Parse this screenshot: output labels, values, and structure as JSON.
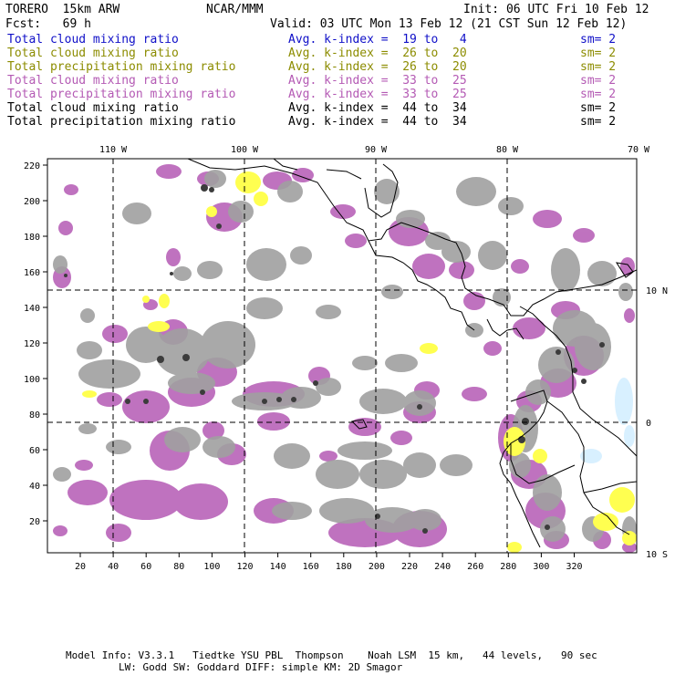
{
  "header": {
    "model": "TORERO  15km ARW",
    "org": "NCAR/MMM",
    "init": "Init: 06 UTC Fri 10 Feb 12",
    "fcst": "Fcst:   69 h",
    "valid": "Valid: 03 UTC Mon 13 Feb 12 (21 CST Sun 12 Feb 12)"
  },
  "legend": [
    {
      "field": "Total cloud mixing ratio",
      "kindex": "Avg. k-index =  19 to   4",
      "sm": "sm= 2",
      "color": "#1010c8"
    },
    {
      "field": "Total cloud mixing ratio",
      "kindex": "Avg. k-index =  26 to  20",
      "sm": "sm= 2",
      "color": "#8c8c00"
    },
    {
      "field": "Total precipitation mixing ratio",
      "kindex": "Avg. k-index =  26 to  20",
      "sm": "sm= 2",
      "color": "#8c8c00"
    },
    {
      "field": "Total cloud mixing ratio",
      "kindex": "Avg. k-index =  33 to  25",
      "sm": "sm= 2",
      "color": "#b45ab4"
    },
    {
      "field": "Total precipitation mixing ratio",
      "kindex": "Avg. k-index =  33 to  25",
      "sm": "sm= 2",
      "color": "#b45ab4"
    },
    {
      "field": "Total cloud mixing ratio",
      "kindex": "Avg. k-index =  44 to  34",
      "sm": "sm= 2",
      "color": "#000000"
    },
    {
      "field": "Total precipitation mixing ratio",
      "kindex": "Avg. k-index =  44 to  34",
      "sm": "sm= 2",
      "color": "#000000"
    }
  ],
  "map": {
    "lon_labels": [
      "110 W",
      "100 W",
      "90 W",
      "80 W",
      "70 W"
    ],
    "lat_labels": [
      "10 N",
      "0",
      "10 S"
    ],
    "x_ticks": [
      "20",
      "40",
      "60",
      "80",
      "100",
      "120",
      "140",
      "160",
      "180",
      "200",
      "220",
      "240",
      "260",
      "280",
      "300",
      "320"
    ],
    "y_ticks": [
      "220",
      "200",
      "180",
      "160",
      "140",
      "120",
      "100",
      "80",
      "60",
      "40",
      "20"
    ],
    "colors": {
      "gray": "#a0a0a0",
      "dark": "#3c3c3c",
      "purple": "#b45ab4",
      "yellow": "#ffff50",
      "cyan": "#d8f0ff"
    }
  },
  "footer": {
    "line1": "Model Info: V3.3.1   Tiedtke YSU PBL  Thompson    Noah LSM  15 km,   44 levels,   90 sec",
    "line2": "LW: Godd SW: Goddard DIFF: simple KM: 2D Smagor"
  }
}
